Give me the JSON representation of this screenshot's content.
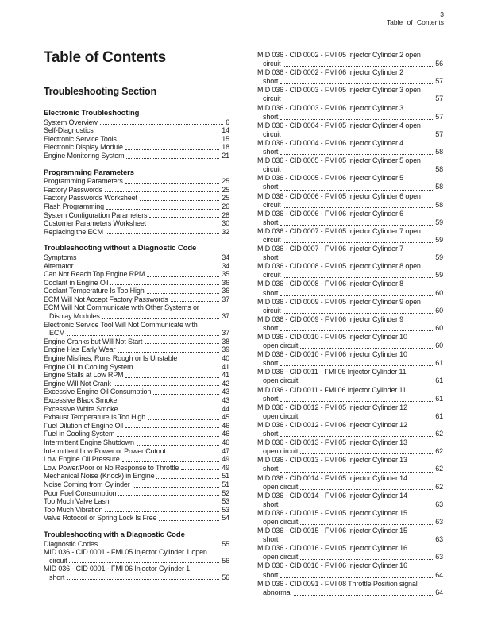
{
  "header": {
    "page_number": "3",
    "section_label": "Table of Contents"
  },
  "page_title": "Table of Contents",
  "left_column": {
    "section_heading": "Troubleshooting Section",
    "blocks": [
      {
        "heading": "Electronic Troubleshooting",
        "entries": [
          {
            "lines": [
              "System Overview"
            ],
            "page": "6"
          },
          {
            "lines": [
              "Self-Diagnostics"
            ],
            "page": "14"
          },
          {
            "lines": [
              "Electronic Service Tools"
            ],
            "page": "15"
          },
          {
            "lines": [
              "Electronic Display Module"
            ],
            "page": "18"
          },
          {
            "lines": [
              "Engine Monitoring System"
            ],
            "page": "21"
          }
        ]
      },
      {
        "heading": "Programming Parameters",
        "entries": [
          {
            "lines": [
              "Programming Parameters"
            ],
            "page": "25"
          },
          {
            "lines": [
              "Factory Passwords"
            ],
            "page": "25"
          },
          {
            "lines": [
              "Factory Passwords Worksheet"
            ],
            "page": "25"
          },
          {
            "lines": [
              "Flash Programming"
            ],
            "page": "26"
          },
          {
            "lines": [
              "System Configuration Parameters"
            ],
            "page": "28"
          },
          {
            "lines": [
              "Customer Parameters Worksheet"
            ],
            "page": "30"
          },
          {
            "lines": [
              "Replacing the ECM"
            ],
            "page": "32"
          }
        ]
      },
      {
        "heading": "Troubleshooting without a Diagnostic Code",
        "entries": [
          {
            "lines": [
              "Symptoms"
            ],
            "page": "34"
          },
          {
            "lines": [
              "Alternator"
            ],
            "page": "34"
          },
          {
            "lines": [
              "Can Not Reach Top Engine RPM"
            ],
            "page": "35"
          },
          {
            "lines": [
              "Coolant in Engine Oil"
            ],
            "page": "36"
          },
          {
            "lines": [
              "Coolant Temperature Is Too High"
            ],
            "page": "36"
          },
          {
            "lines": [
              "ECM Will Not Accept Factory Passwords"
            ],
            "page": "37"
          },
          {
            "lines": [
              "ECM Will Not Communicate with Other Systems or",
              "Display Modules"
            ],
            "page": "37"
          },
          {
            "lines": [
              "Electronic Service Tool Will Not Communicate with",
              "ECM"
            ],
            "page": "37"
          },
          {
            "lines": [
              "Engine Cranks but Will Not Start"
            ],
            "page": "38"
          },
          {
            "lines": [
              "Engine Has Early Wear"
            ],
            "page": "39"
          },
          {
            "lines": [
              "Engine Misfires, Runs Rough or Is Unstable"
            ],
            "page": "40"
          },
          {
            "lines": [
              "Engine Oil in Cooling System"
            ],
            "page": "41"
          },
          {
            "lines": [
              "Engine Stalls at Low RPM"
            ],
            "page": "41"
          },
          {
            "lines": [
              "Engine Will Not Crank"
            ],
            "page": "42"
          },
          {
            "lines": [
              "Excessive Engine Oil Consumption"
            ],
            "page": "43"
          },
          {
            "lines": [
              "Excessive Black Smoke"
            ],
            "page": "43"
          },
          {
            "lines": [
              "Excessive White Smoke"
            ],
            "page": "44"
          },
          {
            "lines": [
              "Exhaust Temperature Is Too High"
            ],
            "page": "45"
          },
          {
            "lines": [
              "Fuel Dilution of Engine Oil"
            ],
            "page": "46"
          },
          {
            "lines": [
              "Fuel in Cooling System"
            ],
            "page": "46"
          },
          {
            "lines": [
              "Intermittent Engine Shutdown"
            ],
            "page": "46"
          },
          {
            "lines": [
              "Intermittent Low Power or Power Cutout"
            ],
            "page": "47"
          },
          {
            "lines": [
              "Low Engine Oil Pressure"
            ],
            "page": "49"
          },
          {
            "lines": [
              "Low Power/Poor or No Response to Throttle"
            ],
            "page": "49"
          },
          {
            "lines": [
              "Mechanical Noise (Knock) in Engine"
            ],
            "page": "51"
          },
          {
            "lines": [
              "Noise Coming from Cylinder"
            ],
            "page": "51"
          },
          {
            "lines": [
              "Poor Fuel Consumption"
            ],
            "page": "52"
          },
          {
            "lines": [
              "Too Much Valve Lash"
            ],
            "page": "53"
          },
          {
            "lines": [
              "Too Much Vibration"
            ],
            "page": "53"
          },
          {
            "lines": [
              "Valve Rotocoil or Spring Lock Is Free"
            ],
            "page": "54"
          }
        ]
      },
      {
        "heading": "Troubleshooting with a Diagnostic Code",
        "entries": [
          {
            "lines": [
              "Diagnostic Codes"
            ],
            "page": "55"
          },
          {
            "lines": [
              "MID 036 - CID 0001 - FMI 05 Injector Cylinder 1 open",
              "circuit"
            ],
            "page": "56"
          },
          {
            "lines": [
              "MID 036 - CID 0001 - FMI 06 Injector Cylinder 1",
              "short"
            ],
            "page": "56"
          }
        ]
      }
    ]
  },
  "right_column": {
    "entries": [
      {
        "lines": [
          "MID 036 - CID 0002 - FMI 05 Injector Cylinder 2 open",
          "circuit"
        ],
        "page": "56"
      },
      {
        "lines": [
          "MID 036 - CID 0002 - FMI 06 Injector Cylinder 2",
          "short"
        ],
        "page": "57"
      },
      {
        "lines": [
          "MID 036 - CID 0003 - FMI 05 Injector Cylinder 3 open",
          "circuit"
        ],
        "page": "57"
      },
      {
        "lines": [
          "MID 036 - CID 0003 - FMI 06 Injector Cylinder 3",
          "short"
        ],
        "page": "57"
      },
      {
        "lines": [
          "MID 036 - CID 0004 - FMI 05 Injector Cylinder 4 open",
          "circuit"
        ],
        "page": "57"
      },
      {
        "lines": [
          "MID 036 - CID 0004 - FMI 06 Injector Cylinder 4",
          "short"
        ],
        "page": "58"
      },
      {
        "lines": [
          "MID 036 - CID 0005 - FMI 05 Injector Cylinder 5 open",
          "circuit"
        ],
        "page": "58"
      },
      {
        "lines": [
          "MID 036 - CID 0005 - FMI 06 Injector Cylinder 5",
          "short"
        ],
        "page": "58"
      },
      {
        "lines": [
          "MID 036 - CID 0006 - FMI 05 Injector Cylinder 6 open",
          "circuit"
        ],
        "page": "58"
      },
      {
        "lines": [
          "MID 036 - CID 0006 - FMI 06 Injector Cylinder 6",
          "short"
        ],
        "page": "59"
      },
      {
        "lines": [
          "MID 036 - CID 0007 - FMI 05 Injector Cylinder 7 open",
          "circuit"
        ],
        "page": "59"
      },
      {
        "lines": [
          "MID 036 - CID 0007 - FMI 06 Injector Cylinder 7",
          "short"
        ],
        "page": "59"
      },
      {
        "lines": [
          "MID 036 - CID 0008 - FMI 05 Injector Cylinder 8 open",
          "circuit"
        ],
        "page": "59"
      },
      {
        "lines": [
          "MID 036 - CID 0008 - FMI 06 Injector Cylinder 8",
          "short"
        ],
        "page": "60"
      },
      {
        "lines": [
          "MID 036 - CID 0009 - FMI 05 Injector Cylinder 9 open",
          "circuit"
        ],
        "page": "60"
      },
      {
        "lines": [
          "MID 036 - CID 0009 - FMI 06 Injector Cylinder 9",
          "short"
        ],
        "page": "60"
      },
      {
        "lines": [
          "MID 036 - CID 0010 - FMI 05 Injector Cylinder 10",
          "open circuit"
        ],
        "page": "60"
      },
      {
        "lines": [
          "MID 036 - CID 0010 - FMI 06 Injector Cylinder 10",
          "short"
        ],
        "page": "61"
      },
      {
        "lines": [
          "MID 036 - CID 0011 - FMI 05 Injector Cylinder 11",
          "open circuit"
        ],
        "page": "61"
      },
      {
        "lines": [
          "MID 036 - CID 0011 - FMI 06 Injector Cylinder 11",
          "short"
        ],
        "page": "61"
      },
      {
        "lines": [
          "MID 036 - CID 0012 - FMI 05 Injector Cylinder 12",
          "open circuit"
        ],
        "page": "61"
      },
      {
        "lines": [
          "MID 036 - CID 0012 - FMI 06 Injector Cylinder 12",
          "short"
        ],
        "page": "62"
      },
      {
        "lines": [
          "MID 036 - CID 0013 - FMI 05 Injector Cylinder 13",
          "open circuit"
        ],
        "page": "62"
      },
      {
        "lines": [
          "MID 036 - CID 0013 - FMI 06 Injector Cylinder 13",
          "short"
        ],
        "page": "62"
      },
      {
        "lines": [
          "MID 036 - CID 0014 - FMI 05 Injector Cylinder 14",
          "open circuit"
        ],
        "page": "62"
      },
      {
        "lines": [
          "MID 036 - CID 0014 - FMI 06 Injector Cylinder 14",
          "short"
        ],
        "page": "63"
      },
      {
        "lines": [
          "MID 036 - CID 0015 - FMI 05 Injector Cylinder 15",
          "open circuit"
        ],
        "page": "63"
      },
      {
        "lines": [
          "MID 036 - CID 0015 - FMI 06 Injector Cylinder 15",
          "short"
        ],
        "page": "63"
      },
      {
        "lines": [
          "MID 036 - CID 0016 - FMI 05 Injector Cylinder 16",
          "open circuit"
        ],
        "page": "63"
      },
      {
        "lines": [
          "MID 036 - CID 0016 - FMI 06 Injector Cylinder 16",
          "short"
        ],
        "page": "64"
      },
      {
        "lines": [
          "MID 036 - CID 0091 - FMI 08 Throttle Position signal",
          "abnormal"
        ],
        "page": "64"
      }
    ]
  }
}
